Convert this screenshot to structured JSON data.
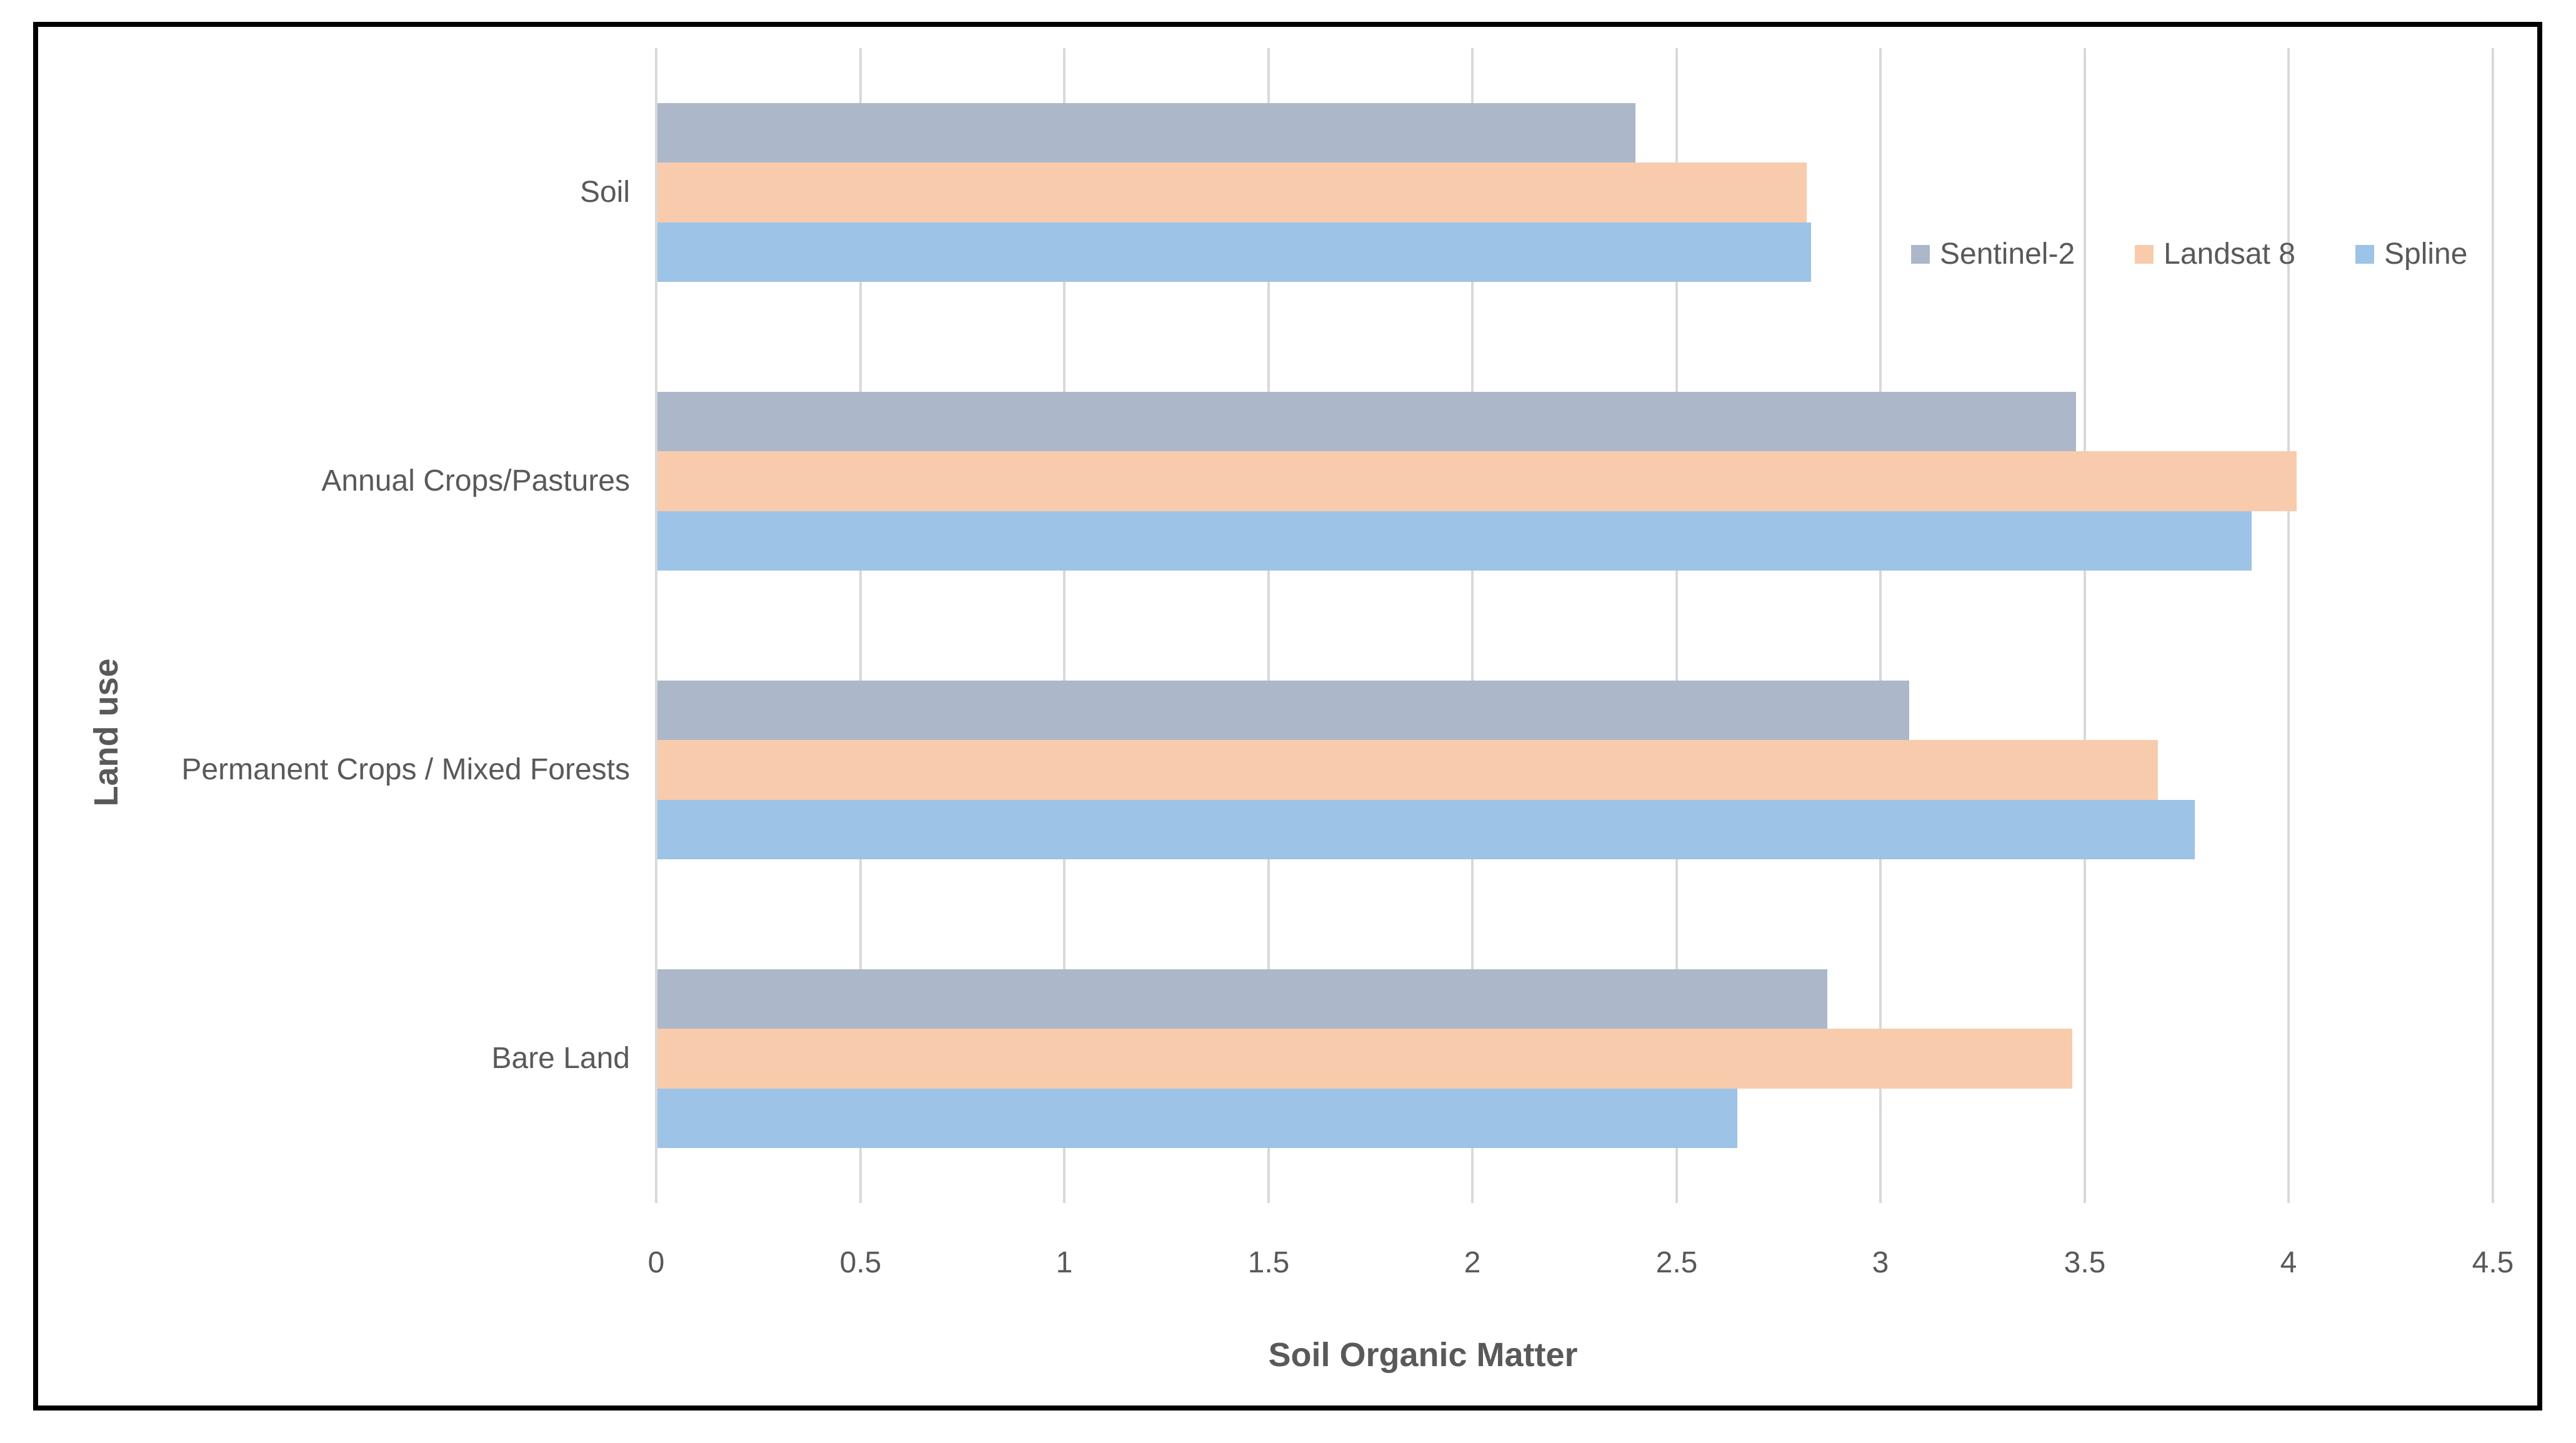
{
  "figure": {
    "background_color": "#FFFFFF",
    "border_color": "#000000",
    "text_color": "#595959",
    "gridline_color": "#D9D9D9"
  },
  "chart_data": {
    "type": "bar",
    "orientation": "horizontal",
    "xlabel": "Soil Organic Matter",
    "ylabel": "Land use",
    "categories": [
      "Soil",
      "Annual Crops/Pastures",
      "Permanent Crops / Mixed Forests",
      "Bare Land"
    ],
    "series": [
      {
        "name": "Sentinel-2",
        "color": "#ACB8C9",
        "values": [
          2.4,
          3.48,
          3.07,
          2.87
        ]
      },
      {
        "name": "Landsat 8",
        "color": "#F8CBAD",
        "values": [
          2.82,
          4.02,
          3.68,
          3.47
        ]
      },
      {
        "name": "Spline",
        "color": "#9DC3E6",
        "values": [
          2.83,
          3.91,
          3.77,
          2.65
        ]
      }
    ],
    "x_ticks": [
      "0",
      "0.5",
      "1",
      "1.5",
      "2",
      "2.5",
      "3",
      "3.5",
      "4",
      "4.5"
    ],
    "xlim": [
      0,
      4.5
    ],
    "grid": "vertical-only",
    "legend_position": "inside-top-right"
  }
}
